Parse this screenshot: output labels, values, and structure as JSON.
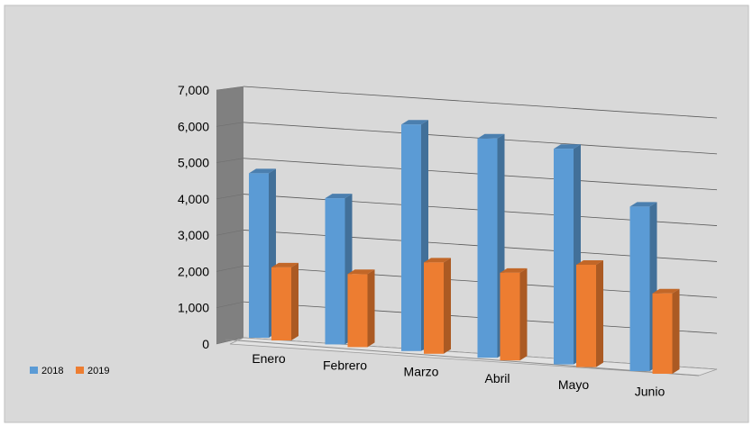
{
  "chart_data": {
    "type": "bar",
    "style": "3d-clustered-column",
    "categories": [
      "Enero",
      "Febrero",
      "Marzo",
      "Abril",
      "Mayo",
      "Junio"
    ],
    "series": [
      {
        "name": "2018",
        "values": [
          4500,
          4000,
          6200,
          6000,
          5900,
          4500
        ],
        "color": "#5B9BD5"
      },
      {
        "name": "2019",
        "values": [
          2000,
          2000,
          2500,
          2400,
          2800,
          2200
        ],
        "color": "#ED7D31"
      }
    ],
    "ylim": [
      0,
      7000
    ],
    "yticks": [
      {
        "value": 0,
        "label": "0"
      },
      {
        "value": 1000,
        "label": "1,000"
      },
      {
        "value": 2000,
        "label": "2,000"
      },
      {
        "value": 3000,
        "label": "3,000"
      },
      {
        "value": 4000,
        "label": "4,000"
      },
      {
        "value": 5000,
        "label": "5,000"
      },
      {
        "value": 6000,
        "label": "6,000"
      },
      {
        "value": 7000,
        "label": "7,000"
      }
    ],
    "grid": true,
    "legend_position": "bottom-left",
    "colors": {
      "background": "#D9D9D9",
      "back_wall": "#D9D9D9",
      "side_wall": "#808080",
      "gridline": "#595959"
    }
  }
}
